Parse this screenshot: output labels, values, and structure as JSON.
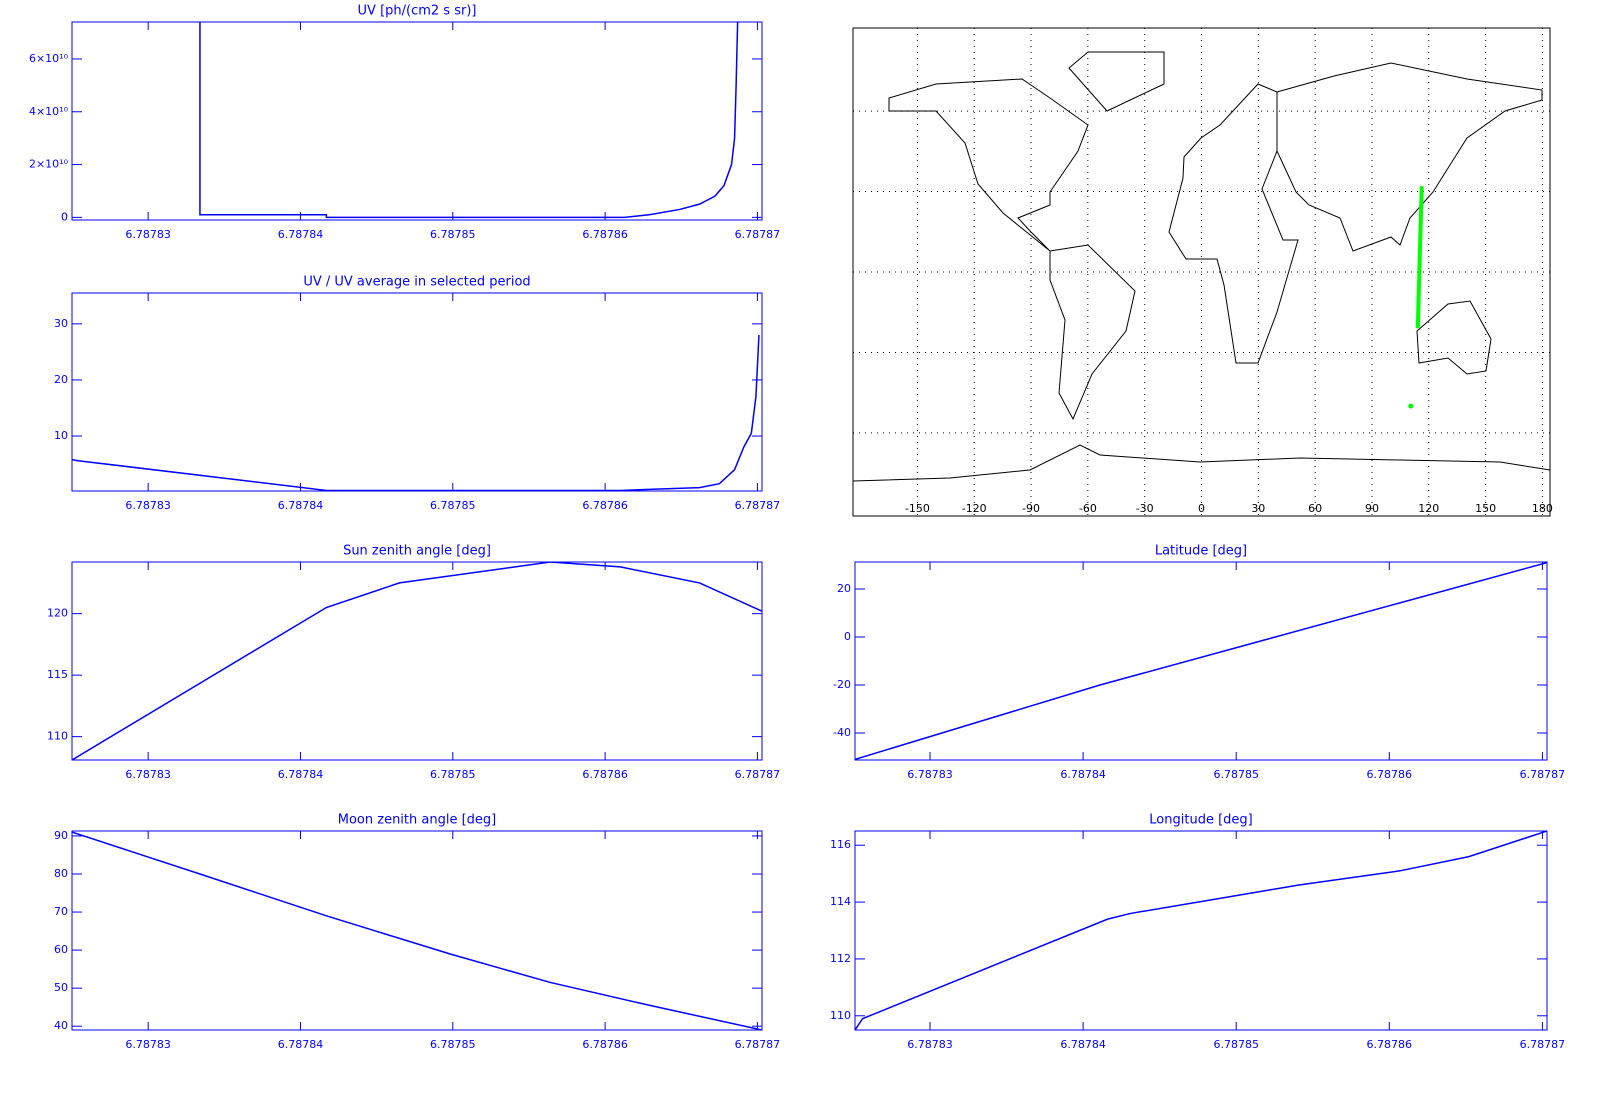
{
  "chart_data": [
    {
      "type": "line",
      "title": "UV [ph/(cm2 s sr)]",
      "color": "#0000ff",
      "x": [
        6.7878334,
        6.7878334,
        6.7878417,
        6.7878417,
        6.7878613,
        6.7878629,
        6.7878649,
        6.7878662,
        6.7878672,
        6.7878678,
        6.7878683,
        6.7878685,
        6.7878686,
        6.7878687
      ],
      "values": [
        74000000000,
        1000000000,
        1000000000,
        0,
        0,
        1000000000,
        3000000000,
        5000000000,
        8000000000,
        12000000000,
        20000000000,
        30000000000,
        50000000000,
        74000000000
      ],
      "xlim": [
        6.787825,
        6.7878703
      ],
      "xticks": [
        6.78783,
        6.78784,
        6.78785,
        6.78786,
        6.78787
      ],
      "ylim": [
        -1000000000,
        74000000000
      ],
      "yticks": [
        0,
        {
          "value": 20000000000,
          "label": "2×10¹⁰"
        },
        {
          "value": 40000000000,
          "label": "4×10¹⁰"
        },
        {
          "value": 60000000000,
          "label": "6×10¹⁰"
        }
      ]
    },
    {
      "type": "line",
      "title": "UV / UV average in selected period",
      "color": "#0000ff",
      "x": [
        6.787825,
        6.7878254,
        6.7878417,
        6.787861,
        6.7878662,
        6.7878675,
        6.7878685,
        6.7878691,
        6.7878696,
        6.7878699,
        6.7878701
      ],
      "values": [
        5.8,
        5.6,
        0.3,
        0.3,
        0.8,
        1.5,
        4,
        8,
        10.5,
        17,
        28
      ],
      "xlim": [
        6.787825,
        6.7878703
      ],
      "xticks": [
        6.78783,
        6.78784,
        6.78785,
        6.78786,
        6.78787
      ],
      "ylim": [
        0.2,
        35.5
      ],
      "yticks": [
        10,
        20,
        30
      ]
    },
    {
      "type": "line",
      "title": "Sun zenith angle [deg]",
      "color": "#0000ff",
      "x": [
        6.787825,
        6.7878417,
        6.7878465,
        6.7878564,
        6.787861,
        6.7878662,
        6.7878703
      ],
      "values": [
        108.1,
        120.5,
        122.5,
        124.2,
        123.8,
        122.5,
        120.2
      ],
      "xlim": [
        6.787825,
        6.7878703
      ],
      "xticks": [
        6.78783,
        6.78784,
        6.78785,
        6.78786,
        6.78787
      ],
      "ylim": [
        108.1,
        124.2
      ],
      "yticks": [
        110,
        115,
        120
      ]
    },
    {
      "type": "line",
      "title": "Moon zenith angle [deg]",
      "color": "#0000ff",
      "x": [
        6.787825,
        6.7878334,
        6.7878417,
        6.7878498,
        6.7878564,
        6.7878629,
        6.7878703
      ],
      "values": [
        91,
        80,
        69,
        59,
        51.5,
        45.5,
        39
      ],
      "xlim": [
        6.787825,
        6.7878703
      ],
      "xticks": [
        6.78783,
        6.78784,
        6.78785,
        6.78786,
        6.78787
      ],
      "ylim": [
        39,
        91.3
      ],
      "yticks": [
        40,
        50,
        60,
        70,
        80,
        90
      ]
    },
    {
      "type": "map",
      "color": "#00ff00",
      "grid": true,
      "x": [
        110.5,
        null,
        114.2,
        115.2,
        116.3
      ],
      "values": [
        -50,
        null,
        -21,
        5,
        32
      ],
      "xlim": [
        -184,
        184
      ],
      "xticks": [
        -150,
        -120,
        -90,
        -60,
        -30,
        0,
        30,
        60,
        90,
        120,
        150,
        180
      ],
      "ylim": [
        -91,
        91
      ],
      "yticks": [
        -60,
        -30,
        0,
        30,
        60
      ]
    },
    {
      "type": "line",
      "title": "Latitude [deg]",
      "color": "#0000ff",
      "x": [
        6.7878251,
        6.7878411,
        6.7878703
      ],
      "values": [
        -51,
        -20,
        31
      ],
      "xlim": [
        6.7878251,
        6.7878703
      ],
      "xticks": [
        6.78783,
        6.78784,
        6.78785,
        6.78786,
        6.78787
      ],
      "ylim": [
        -51.25,
        31.25
      ],
      "yticks": [
        -40,
        -20,
        0,
        20
      ]
    },
    {
      "type": "line",
      "title": "Longitude [deg]",
      "color": "#0000ff",
      "x": [
        6.7878251,
        6.7878256,
        6.7878416,
        6.7878431,
        6.7878541,
        6.7878607,
        6.7878652,
        6.7878703
      ],
      "values": [
        109.5,
        109.9,
        113.4,
        113.6,
        114.6,
        115.1,
        115.6,
        116.5
      ],
      "xlim": [
        6.7878251,
        6.7878703
      ],
      "xticks": [
        6.78783,
        6.78784,
        6.78785,
        6.78786,
        6.78787
      ],
      "ylim": [
        109.5,
        116.5
      ],
      "yticks": [
        110,
        112,
        114,
        116
      ]
    }
  ]
}
